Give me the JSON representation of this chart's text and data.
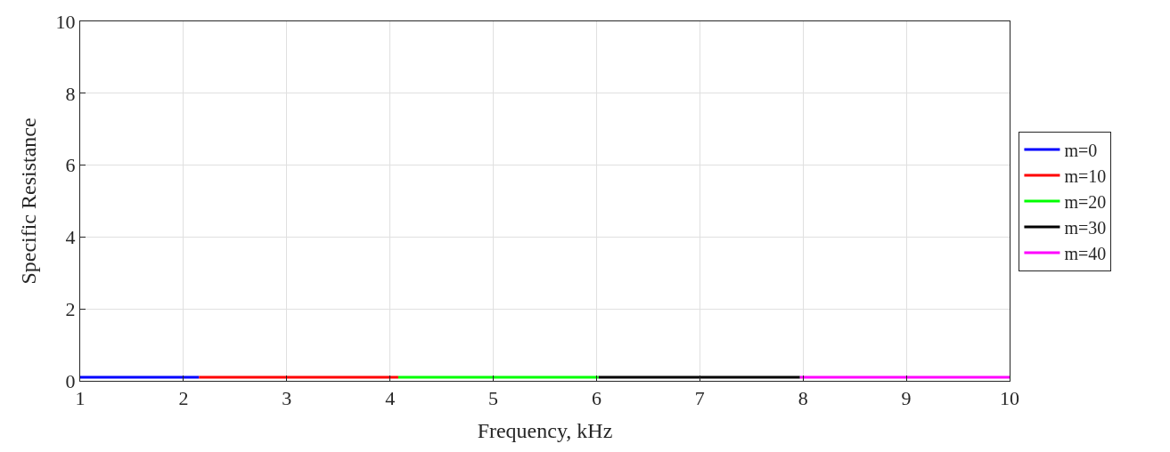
{
  "chart_data": {
    "type": "line",
    "xlabel": "Frequency, kHz",
    "ylabel": "Specific Resistance",
    "series": [
      {
        "name": "m=0",
        "color": "#0000ff",
        "x": [
          1,
          2.15
        ],
        "values": [
          0.1,
          0.1
        ]
      },
      {
        "name": "m=10",
        "color": "#ff0000",
        "x": [
          2.15,
          4.08
        ],
        "values": [
          0.1,
          0.1
        ]
      },
      {
        "name": "m=20",
        "color": "#00ff00",
        "x": [
          4.08,
          6.02
        ],
        "values": [
          0.1,
          0.1
        ]
      },
      {
        "name": "m=30",
        "color": "#000000",
        "x": [
          6.02,
          7.97
        ],
        "values": [
          0.1,
          0.1
        ]
      },
      {
        "name": "m=40",
        "color": "#ff00ff",
        "x": [
          7.97,
          10
        ],
        "values": [
          0.1,
          0.1
        ]
      }
    ],
    "xlim": [
      1,
      10
    ],
    "xticks": [
      1,
      2,
      3,
      4,
      5,
      6,
      7,
      8,
      9,
      10
    ],
    "ylim": [
      0,
      10
    ],
    "yticks": [
      0,
      2,
      4,
      6,
      8,
      10
    ],
    "grid": true,
    "legend": "right",
    "line_style": "solid",
    "marker": "none"
  }
}
